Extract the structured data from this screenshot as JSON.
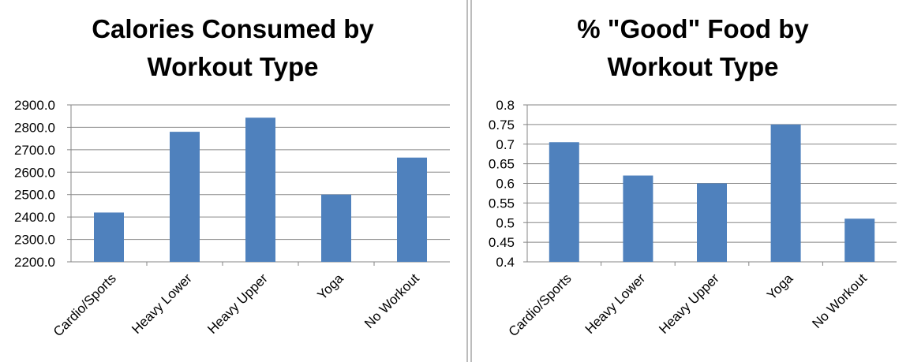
{
  "chart_data": [
    {
      "type": "bar",
      "title": [
        "Calories Consumed by",
        "Workout Type"
      ],
      "categories": [
        "Cardio/Sports",
        "Heavy Lower",
        "Heavy Upper",
        "Yoga",
        "No Workout"
      ],
      "values": [
        2420,
        2780,
        2843,
        2500,
        2665
      ],
      "ylim": [
        2200,
        2900
      ],
      "yticks": [
        "2200.0",
        "2300.0",
        "2400.0",
        "2500.0",
        "2600.0",
        "2700.0",
        "2800.0",
        "2900.0"
      ],
      "xlabel": "",
      "ylabel": "",
      "grid": true,
      "bar_color": "#4f81bd"
    },
    {
      "type": "bar",
      "title": [
        "% \"Good\" Food by",
        "Workout Type"
      ],
      "categories": [
        "Cardio/Sports",
        "Heavy Lower",
        "Heavy Upper",
        "Yoga",
        "No Workout"
      ],
      "values": [
        0.705,
        0.62,
        0.6,
        0.75,
        0.51
      ],
      "ylim": [
        0.4,
        0.8
      ],
      "yticks": [
        "0.4",
        "0.45",
        "0.5",
        "0.55",
        "0.6",
        "0.65",
        "0.7",
        "0.75",
        "0.8"
      ],
      "xlabel": "",
      "ylabel": "",
      "grid": true,
      "bar_color": "#4f81bd"
    }
  ]
}
